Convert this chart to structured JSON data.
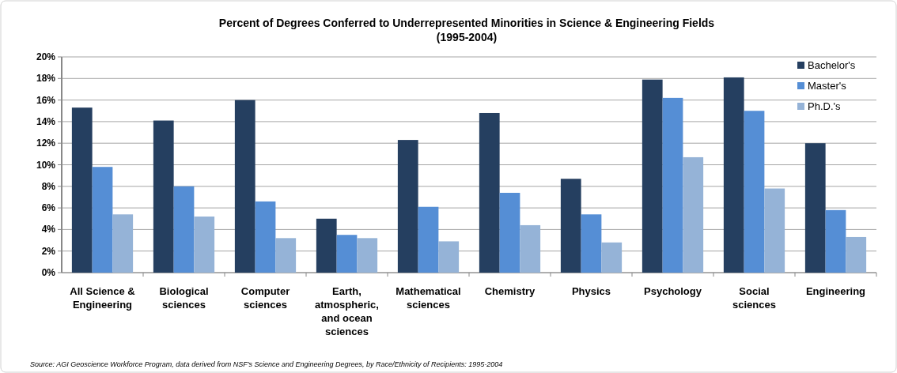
{
  "chart_data": {
    "type": "bar",
    "title": "Percent of Degrees Conferred to Underrepresented Minorities in Science & Engineering Fields",
    "subtitle": "(1995-2004)",
    "categories": [
      "All Science & Engineering",
      "Biological sciences",
      "Computer sciences",
      "Earth, atmospheric, and ocean sciences",
      "Mathematical sciences",
      "Chemistry",
      "Physics",
      "Psychology",
      "Social sciences",
      "Engineering"
    ],
    "series": [
      {
        "name": "Bachelor's",
        "color": "#253f60",
        "values": [
          15.3,
          14.1,
          16.0,
          5.0,
          12.3,
          14.8,
          8.7,
          17.9,
          18.1,
          12.0
        ]
      },
      {
        "name": "Master's",
        "color": "#558ed5",
        "values": [
          9.8,
          8.0,
          6.6,
          3.5,
          6.1,
          7.4,
          5.4,
          16.2,
          15.0,
          5.8
        ]
      },
      {
        "name": "Ph.D.'s",
        "color": "#95b3d7",
        "values": [
          5.4,
          5.2,
          3.2,
          3.2,
          2.9,
          4.4,
          2.8,
          10.7,
          7.8,
          3.3
        ]
      }
    ],
    "ylim": [
      0,
      20
    ],
    "yticks": [
      {
        "value": 0,
        "label": "0%"
      },
      {
        "value": 2,
        "label": "2%"
      },
      {
        "value": 4,
        "label": "4%"
      },
      {
        "value": 6,
        "label": "6%"
      },
      {
        "value": 8,
        "label": "8%"
      },
      {
        "value": 10,
        "label": "10%"
      },
      {
        "value": 12,
        "label": "12%"
      },
      {
        "value": 14,
        "label": "14%"
      },
      {
        "value": 16,
        "label": "16%"
      },
      {
        "value": 18,
        "label": "18%"
      },
      {
        "value": 20,
        "label": "20%"
      }
    ],
    "grid": "y",
    "legend": "top right",
    "annotations": [
      "Source: AGI Geoscience Workforce Program, data derived from NSF's Science and Engineering Degrees, by Race/Ethnicity of Recipients: 1995-2004"
    ]
  }
}
